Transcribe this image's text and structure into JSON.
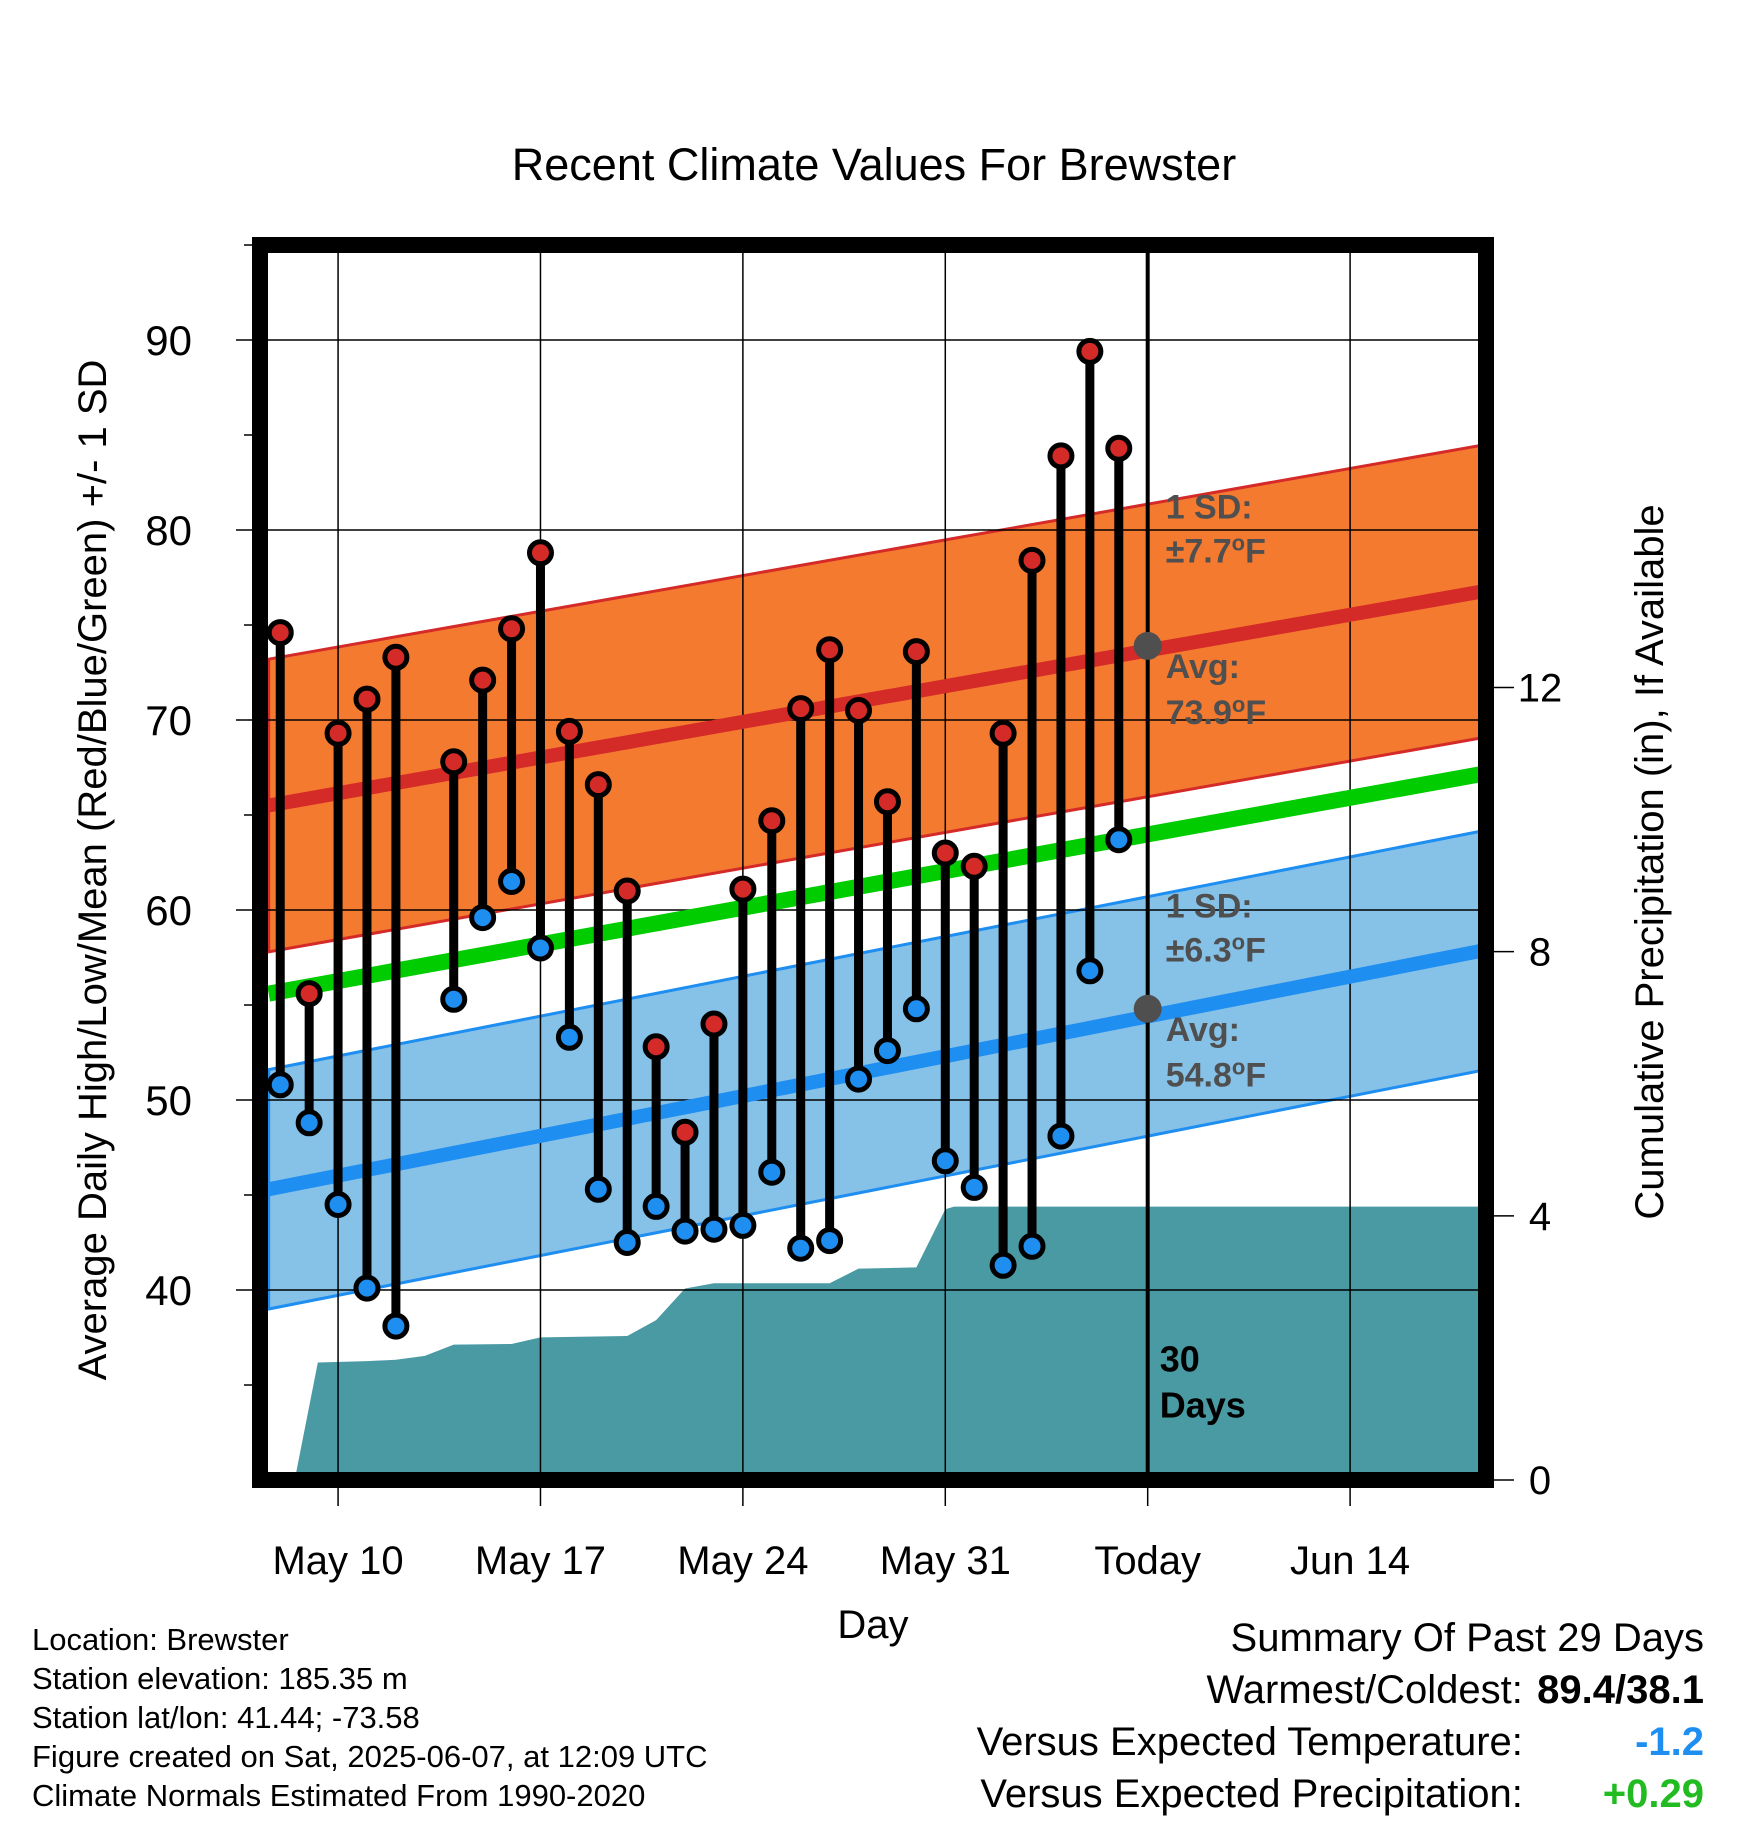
{
  "chart_data": {
    "type": "line",
    "title": "Recent Climate Values For Brewster",
    "xlabel": "Day",
    "ylabel": "Average Daily High/Low/Mean (Red/Blue/Green) +/- 1 SD",
    "y2label": "Cumulative Precipitation (in), If Available",
    "ylim": [
      30,
      95
    ],
    "y2lim": [
      0,
      18.7
    ],
    "xlim": [
      -0.7,
      41.7
    ],
    "x_tick_labels": [
      "May 10",
      "May 17",
      "May 24",
      "May 31",
      "Today",
      "Jun 14"
    ],
    "y_ticks": [
      40,
      50,
      60,
      70,
      80,
      90
    ],
    "y2_ticks": [
      0,
      4,
      8,
      12
    ],
    "grid": true,
    "days": [
      "May 8",
      "May 9",
      "May 10",
      "May 11",
      "May 12",
      "May 13",
      "May 14",
      "May 15",
      "May 16",
      "May 17",
      "May 18",
      "May 19",
      "May 20",
      "May 21",
      "May 22",
      "May 23",
      "May 24",
      "May 25",
      "May 26",
      "May 27",
      "May 28",
      "May 29",
      "May 30",
      "May 31",
      "Jun 1",
      "Jun 2",
      "Jun 3",
      "Jun 4",
      "Jun 5",
      "Jun 6"
    ],
    "daily_high": [
      74.6,
      55.6,
      69.3,
      71.1,
      73.3,
      null,
      67.8,
      72.1,
      74.8,
      78.8,
      69.4,
      66.6,
      61.0,
      52.8,
      48.3,
      54.0,
      61.1,
      64.7,
      70.6,
      73.7,
      70.5,
      65.7,
      73.6,
      63.0,
      62.3,
      69.3,
      78.4,
      83.9,
      89.4,
      84.3
    ],
    "daily_low": [
      50.8,
      48.8,
      44.5,
      40.1,
      38.1,
      null,
      55.3,
      59.6,
      61.5,
      58.0,
      53.3,
      45.3,
      42.5,
      44.4,
      43.1,
      43.2,
      43.4,
      46.2,
      42.2,
      42.6,
      51.1,
      52.6,
      54.8,
      46.8,
      45.4,
      41.3,
      42.3,
      48.1,
      56.8,
      63.7
    ],
    "normal_high": {
      "start": 65.5,
      "end": 76.8,
      "sd": 7.7
    },
    "normal_low": {
      "start": 45.3,
      "end": 57.9,
      "sd": 6.3
    },
    "normal_mean": {
      "start": 55.6,
      "end": 67.2
    },
    "cumulative_precip": [
      {
        "x": -0.3,
        "v": 0
      },
      {
        "x": 0.5,
        "v": 0
      },
      {
        "x": 1.3,
        "v": 1.78
      },
      {
        "x": 3.0,
        "v": 1.8
      },
      {
        "x": 4.0,
        "v": 1.82
      },
      {
        "x": 5.0,
        "v": 1.88
      },
      {
        "x": 6.0,
        "v": 2.05
      },
      {
        "x": 8.0,
        "v": 2.06
      },
      {
        "x": 9.0,
        "v": 2.16
      },
      {
        "x": 12.0,
        "v": 2.18
      },
      {
        "x": 13.0,
        "v": 2.42
      },
      {
        "x": 14.0,
        "v": 2.9
      },
      {
        "x": 15.0,
        "v": 2.98
      },
      {
        "x": 19.0,
        "v": 2.98
      },
      {
        "x": 20.0,
        "v": 3.2
      },
      {
        "x": 22.0,
        "v": 3.22
      },
      {
        "x": 23.0,
        "v": 4.1
      },
      {
        "x": 23.3,
        "v": 4.14
      },
      {
        "x": 41.7,
        "v": 4.14
      }
    ],
    "annotations": {
      "high_sd_line1": "1 SD:",
      "high_sd_line2": "±7.7",
      "high_avg_line1": "Avg:",
      "high_avg_line2": "73.9",
      "low_sd_line1": "1 SD:",
      "low_sd_line2": "±6.3",
      "low_avg_line1": "Avg:",
      "low_avg_line2": "54.8",
      "degree_unit": "o",
      "unit_letter": "F",
      "days_line1": "30",
      "days_line2": "Days"
    },
    "today_high_avg": 73.9,
    "today_low_avg": 54.8
  },
  "colors": {
    "high_band": "#f47a30",
    "high_line": "#d42a28",
    "low_band": "#86c1e8",
    "low_line": "#1e8ef0",
    "mean_line": "#00cc00",
    "precip_fill": "#4a9aa4",
    "high_dot": "#d42a28",
    "low_dot": "#1e8ef0",
    "annotation_text": "#4f4f4f",
    "cold_value": "#1e8ef0",
    "precip_value": "#22bb22"
  },
  "info": {
    "location": "Location: Brewster",
    "elevation": "Station elevation: 185.35 m",
    "latlon": "Station lat/lon: 41.44; -73.58",
    "created": "Figure created on Sat, 2025-06-07, at 12:09 UTC",
    "normals": "Climate Normals Estimated From 1990-2020"
  },
  "summary": {
    "title": "Summary Of Past 29 Days",
    "warm_cold_label": "Warmest/Coldest:",
    "warm_cold_value": "89.4/38.1",
    "temp_label": "Versus Expected Temperature:",
    "temp_value": "-1.2",
    "precip_label": "Versus Expected Precipitation:",
    "precip_value": "+0.29"
  }
}
